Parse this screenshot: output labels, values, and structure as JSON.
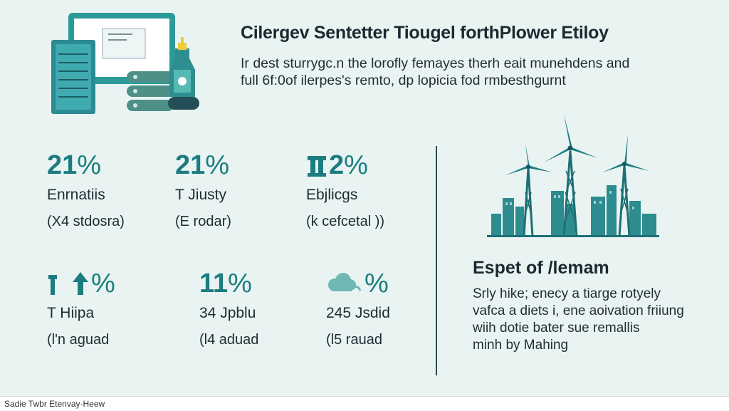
{
  "header": {
    "title": "Cilergev Sentetter Tiougel forthPlower Etiloy",
    "subtitle_lines": [
      "Ir dest sturrygc.n the lorofly femayes therh eait munehdens and",
      "full 6f:0of ilerpes's remto, dp lopicia fod rmbesthgurnt"
    ]
  },
  "stats": [
    {
      "value": "21",
      "symbol": "%",
      "label": "Enrnatiis",
      "note": "(X4 stdosra)"
    },
    {
      "value": "21",
      "symbol": "%",
      "label": "T Jiusty",
      "note": "(E rodar)"
    },
    {
      "value": "2",
      "symbol": "%",
      "label": "Ebjlicgs",
      "note": "(k cefcetal ))"
    },
    {
      "value": "",
      "symbol": "%",
      "label": "T Hiipa",
      "note": "(l'n aguad"
    },
    {
      "value": "11",
      "symbol": "%",
      "label": "34 Jpblu",
      "note": "(l4 aduad"
    },
    {
      "value": "",
      "symbol": "%",
      "label": "245 Jsdid",
      "note": "(l5 rauad"
    }
  ],
  "side": {
    "title": "Espet of /lemam",
    "body_lines": [
      "Srly hike; enecy a tiarge rotyely",
      "vafca a diets i, ene aoivation friiung",
      "wiih dotie bater sue remallis",
      "minh by Mahing"
    ]
  },
  "footer": {
    "text": "Sadie Twbr Etenvay·Heew"
  },
  "colors": {
    "accent": "#1b7d80",
    "background": "#e9f4f2",
    "ink": "#1d2c33"
  },
  "icons": [
    "computer-server-illustration",
    "wind-turbine-city-illustration",
    "pillar-icon",
    "arrow-up-icon",
    "cloud-icon"
  ]
}
